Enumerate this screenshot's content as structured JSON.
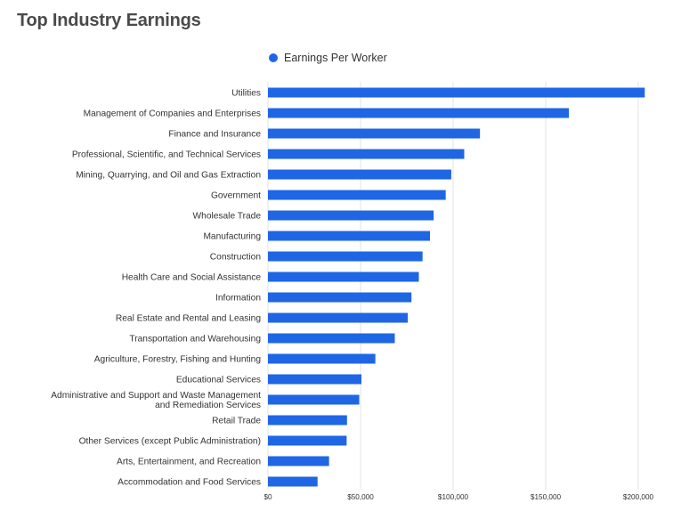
{
  "title": "Top Industry Earnings",
  "legend": {
    "label": "Earnings Per Worker",
    "color": "#1f66e5"
  },
  "chart_data": {
    "type": "bar",
    "orientation": "horizontal",
    "title": "Top Industry Earnings",
    "xlabel": "",
    "ylabel": "",
    "xlim": [
      0,
      200000
    ],
    "grid": true,
    "legend_position": "top",
    "x_ticks": [
      "$0",
      "$50,000",
      "$100,000",
      "$150,000",
      "$200,000"
    ],
    "categories": [
      "Utilities",
      "Management of Companies and Enterprises",
      "Finance and Insurance",
      "Professional, Scientific, and Technical Services",
      "Mining, Quarrying, and Oil and Gas Extraction",
      "Government",
      "Wholesale Trade",
      "Manufacturing",
      "Construction",
      "Health Care and Social Assistance",
      "Information",
      "Real Estate and Rental and Leasing",
      "Transportation and Warehousing",
      "Agriculture, Forestry, Fishing and Hunting",
      "Educational Services",
      "Administrative and Support and Waste Management and Remediation Services",
      "Retail Trade",
      "Other Services (except Public Administration)",
      "Arts, Entertainment, and Recreation",
      "Accommodation and Food Services"
    ],
    "series": [
      {
        "name": "Earnings Per Worker",
        "color": "#1f66e5",
        "values": [
          203500,
          162500,
          114500,
          106000,
          99000,
          96000,
          89500,
          87500,
          83500,
          81500,
          77500,
          75500,
          68500,
          58000,
          50500,
          49300,
          42700,
          42500,
          33000,
          26800
        ]
      }
    ]
  }
}
